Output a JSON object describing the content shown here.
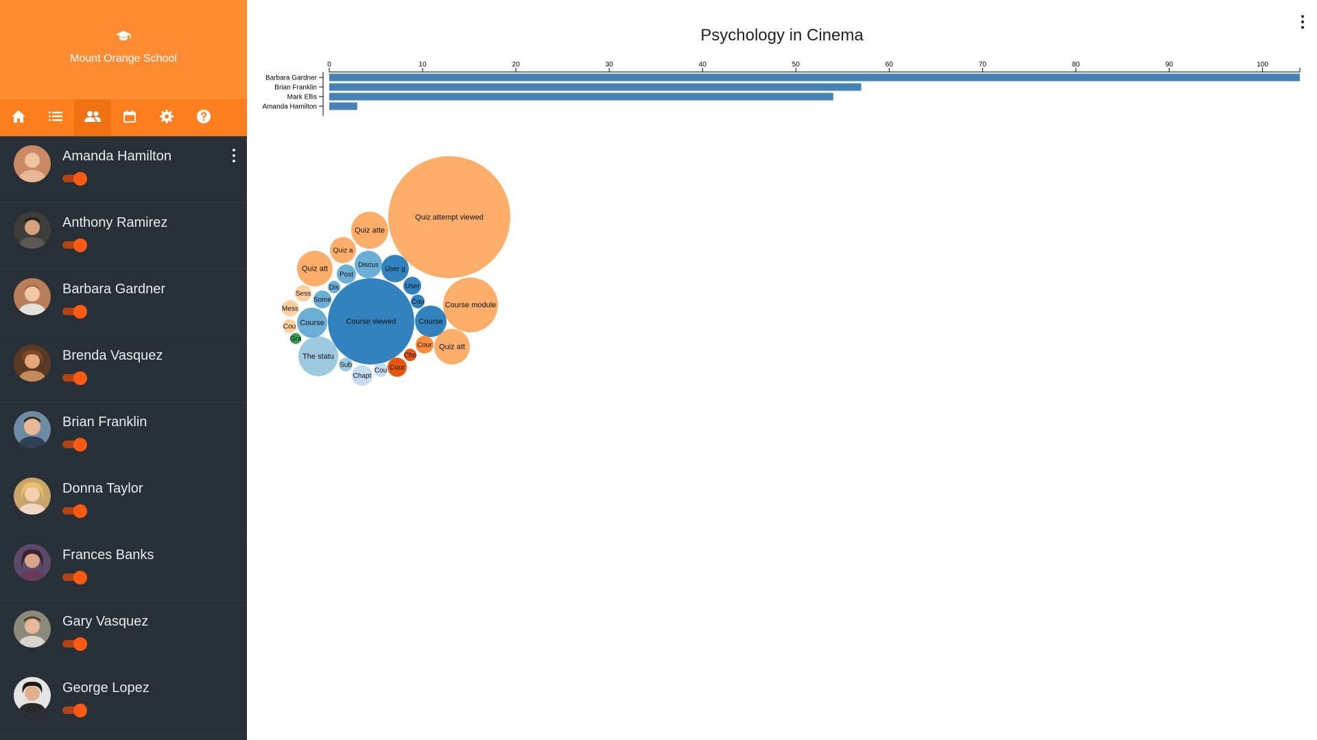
{
  "sidebar": {
    "school_name": "Mount Orange School",
    "nav": [
      {
        "icon": "home-icon",
        "active": false
      },
      {
        "icon": "list-icon",
        "active": false
      },
      {
        "icon": "users-icon",
        "active": true
      },
      {
        "icon": "calendar-icon",
        "active": false
      },
      {
        "icon": "gear-icon",
        "active": false
      },
      {
        "icon": "help-icon",
        "active": false
      }
    ],
    "users": [
      {
        "name": "Amanda Hamilton",
        "enabled": true
      },
      {
        "name": "Anthony Ramirez",
        "enabled": true
      },
      {
        "name": "Barbara Gardner",
        "enabled": true
      },
      {
        "name": "Brenda Vasquez",
        "enabled": true
      },
      {
        "name": "Brian Franklin",
        "enabled": true
      },
      {
        "name": "Donna Taylor",
        "enabled": true
      },
      {
        "name": "Frances Banks",
        "enabled": true
      },
      {
        "name": "Gary Vasquez",
        "enabled": true
      },
      {
        "name": "George Lopez",
        "enabled": true
      }
    ]
  },
  "colors": {
    "brand_orange": "#ff8b33",
    "sidebar_bg": "#263036",
    "toggle_on": "#ff5a14",
    "bar_blue": "#4682b4"
  },
  "main": {
    "title": "Psychology in Cinema"
  },
  "chart_data": [
    {
      "type": "bar",
      "orientation": "horizontal",
      "categories": [
        "Barbara Gardner",
        "Brian Franklin",
        "Mark Ellis",
        "Amanda Hamilton"
      ],
      "values": [
        104,
        57,
        54,
        3
      ],
      "xlim": [
        0,
        104
      ],
      "xticks": [
        0,
        10,
        20,
        30,
        40,
        50,
        60,
        70,
        80,
        90,
        100
      ],
      "axis_position": "top",
      "color": "#4682b4"
    },
    {
      "type": "bubble",
      "bubbles": [
        {
          "label": "Quiz attempt viewed",
          "value": 100,
          "color": "#fdae6b"
        },
        {
          "label": "Course viewed",
          "value": 100,
          "color": "#3182bd"
        },
        {
          "label": "Course module",
          "value": 20,
          "color": "#fdae6b"
        },
        {
          "label": "Quiz att",
          "value": 9.5,
          "color": "#fdae6b"
        },
        {
          "label": "Quiz att",
          "value": 9,
          "color": "#fdae6b"
        },
        {
          "label": "The statu",
          "value": 11,
          "color": "#9ecae1"
        },
        {
          "label": "Quiz atte",
          "value": 9,
          "color": "#fdae6b"
        },
        {
          "label": "Course",
          "value": 6,
          "color": "#3182bd"
        },
        {
          "label": "Course",
          "value": 5.5,
          "color": "#6baed6"
        },
        {
          "label": "Discus",
          "value": 4.5,
          "color": "#6baed6"
        },
        {
          "label": "User g",
          "value": 4.5,
          "color": "#3182bd"
        },
        {
          "label": "Quiz a",
          "value": 4.5,
          "color": "#fdae6b"
        },
        {
          "label": "Chapt",
          "value": 3,
          "color": "#c6dbef"
        },
        {
          "label": "Post",
          "value": 2,
          "color": "#6baed6"
        },
        {
          "label": "Some",
          "value": 2,
          "color": "#6baed6"
        },
        {
          "label": "User",
          "value": 2,
          "color": "#3182bd"
        },
        {
          "label": "Cour",
          "value": 2.5,
          "color": "#e6550d"
        },
        {
          "label": "Cour",
          "value": 2,
          "color": "#fd8d3c"
        },
        {
          "label": "Sess",
          "value": 1.5,
          "color": "#fdd0a2"
        },
        {
          "label": "Mess",
          "value": 1.5,
          "color": "#fdd0a2"
        },
        {
          "label": "Cou",
          "value": 1,
          "color": "#fdd0a2"
        },
        {
          "label": "Sub",
          "value": 1,
          "color": "#9ecae1"
        },
        {
          "label": "Cou",
          "value": 1,
          "color": "#3182bd"
        },
        {
          "label": "Cou",
          "value": 1,
          "color": "#c6dbef"
        },
        {
          "label": "Cho",
          "value": 1,
          "color": "#e6550d"
        },
        {
          "label": "Dis",
          "value": 1,
          "color": "#6baed6"
        },
        {
          "label": "Gra",
          "value": 0.7,
          "color": "#31a354"
        }
      ]
    }
  ]
}
